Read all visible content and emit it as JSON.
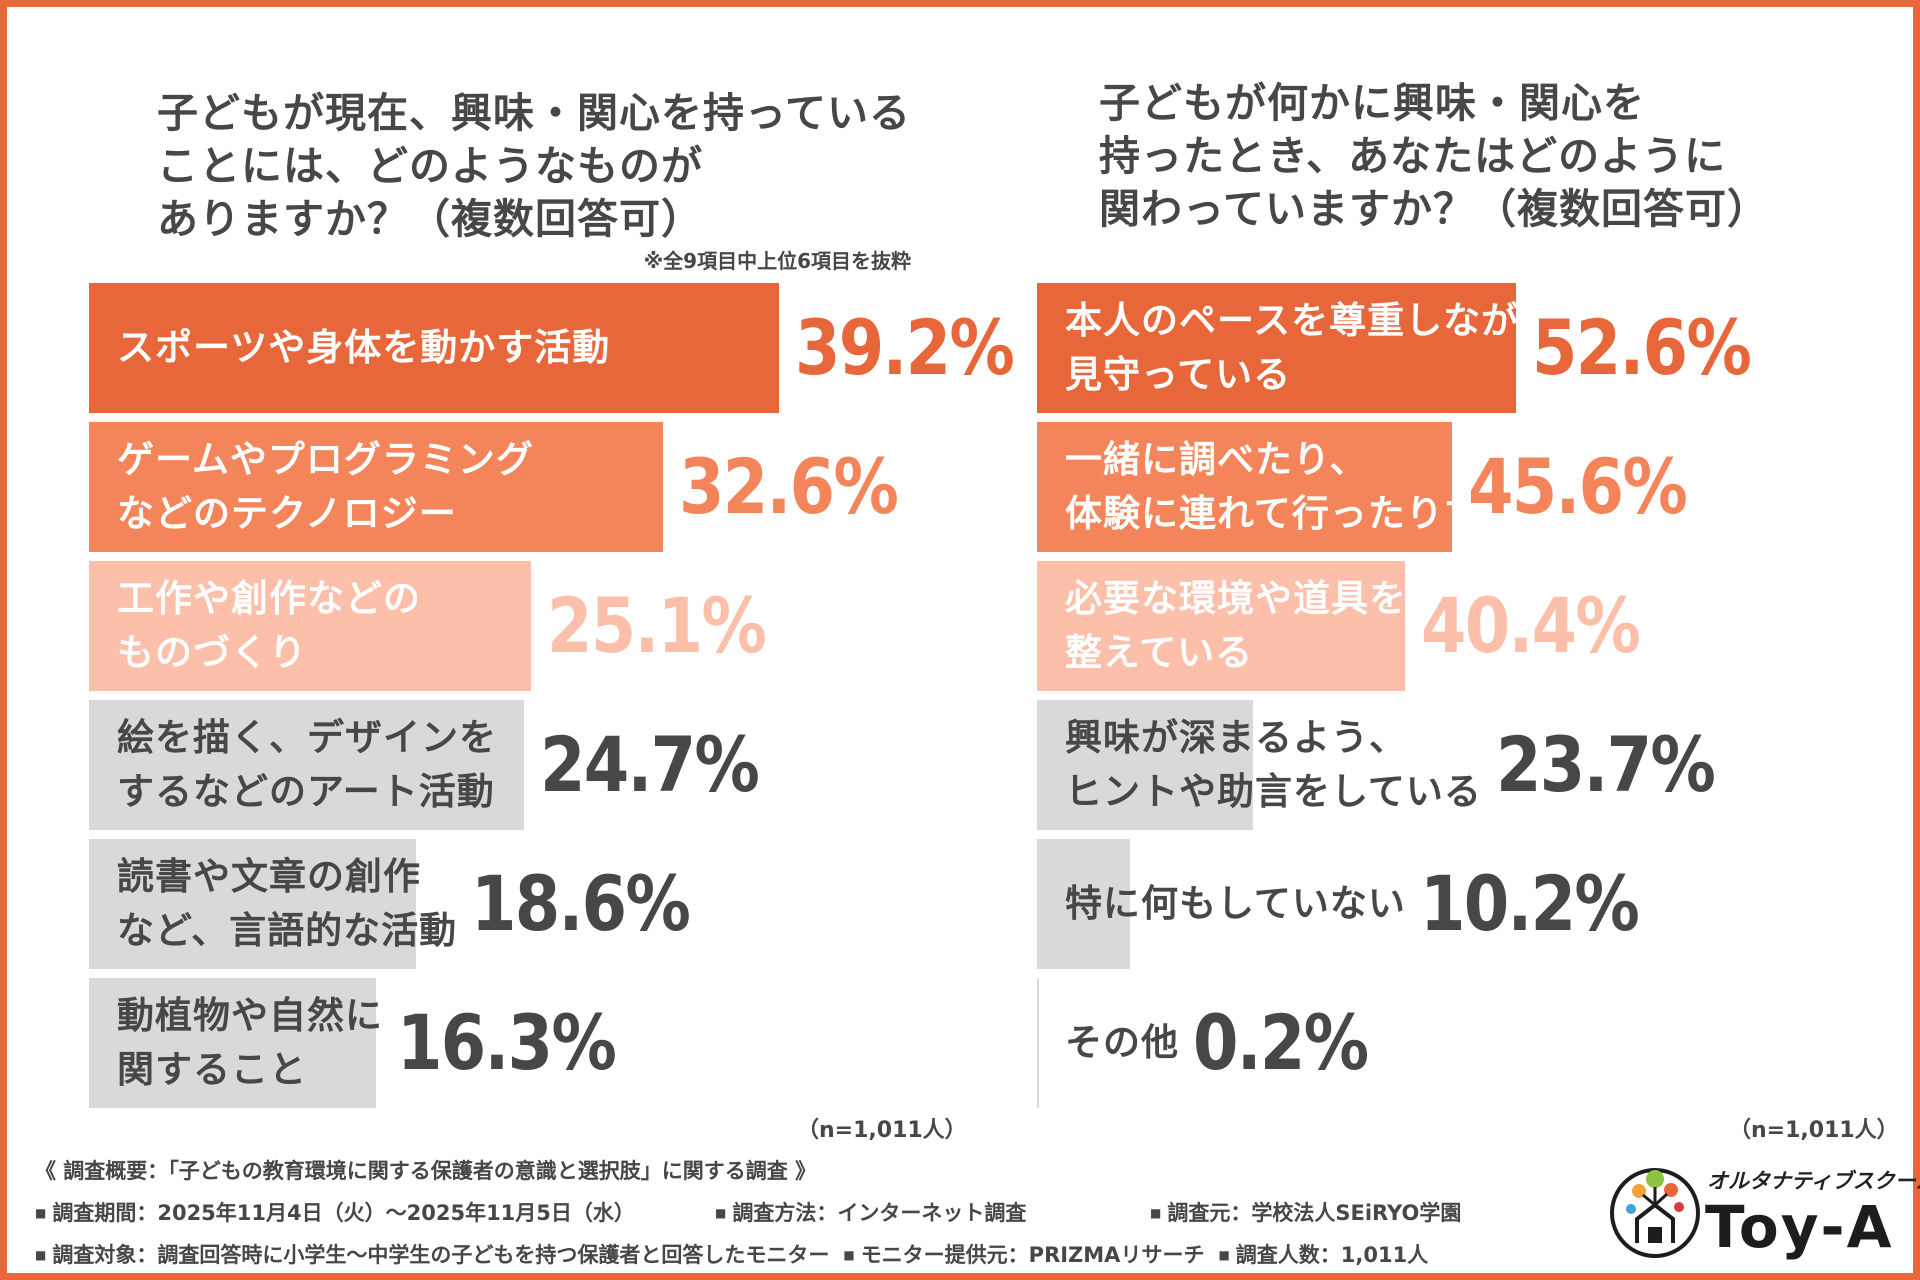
{
  "colors": {
    "frame": "#e8673a",
    "tier1": "#e8673a",
    "tier2": "#f4855b",
    "tier3": "#fbbfaa",
    "tier4": "#d9d9d9",
    "text_dark": "#474747",
    "text_white": "#ffffff"
  },
  "left_title": [
    "子どもが現在、興味・関心を持っている",
    "ことには、どのようなものが",
    "ありますか？（複数回答可）"
  ],
  "left_note": "※全9項目中上位6項目を抜粋",
  "right_title": [
    "子どもが何かに興味・関心を",
    "持ったとき、あなたはどのように",
    "関わっていますか？（複数回答可）"
  ],
  "left_n": "（n=1,011人）",
  "right_n": "（n=1,011人）",
  "chart_data": [
    {
      "type": "bar",
      "orientation": "horizontal",
      "title": "子どもが現在、興味・関心を持っていることには、どのようなものがありますか？（複数回答可）",
      "categories": [
        [
          "スポーツや身体を動かす活動"
        ],
        [
          "ゲームやプログラミング",
          "などのテクノロジー"
        ],
        [
          "工作や創作などの",
          "ものづくり"
        ],
        [
          "絵を描く、デザインを",
          "するなどのアート活動"
        ],
        [
          "読書や文章の創作",
          "など、言語的な活動"
        ],
        [
          "動植物や自然に",
          "関すること"
        ]
      ],
      "values": [
        39.2,
        32.6,
        25.1,
        24.7,
        18.6,
        16.3
      ],
      "value_labels": [
        "39.2%",
        "32.6%",
        "25.1%",
        "24.7%",
        "18.6%",
        "16.3%"
      ],
      "tiers": [
        1,
        2,
        3,
        4,
        4,
        4
      ],
      "unit": "%"
    },
    {
      "type": "bar",
      "orientation": "horizontal",
      "title": "子どもが何かに興味・関心を持ったとき、あなたはどのように関わっていますか？（複数回答可）",
      "categories": [
        [
          "本人のペースを尊重しながら",
          "見守っている"
        ],
        [
          "一緒に調べたり、",
          "体験に連れて行ったりする"
        ],
        [
          "必要な環境や道具を",
          "整えている"
        ],
        [
          "興味が深まるよう、",
          "ヒントや助言をしている"
        ],
        [
          "特に何もしていない"
        ],
        [
          "その他"
        ]
      ],
      "values": [
        52.6,
        45.6,
        40.4,
        23.7,
        10.2,
        0.2
      ],
      "value_labels": [
        "52.6%",
        "45.6%",
        "40.4%",
        "23.7%",
        "10.2%",
        "0.2%"
      ],
      "tiers": [
        1,
        2,
        3,
        4,
        4,
        4
      ],
      "unit": "%"
    }
  ],
  "footer": {
    "heading": "《 調査概要：「子どもの教育環境に関する保護者の意識と選択肢」に関する調査 》",
    "period": "調査期間：2025年11月4日（火）～2025年11月5日（水）",
    "method": "調査方法：インターネット調査",
    "source": "調査元：学校法人SEiRYO学園",
    "target": "調査対象：調査回答時に小学生～中学生の子どもを持つ保護者と回答したモニター",
    "provider": "モニター提供元：PRIZMAリサーチ",
    "count": "調査人数：1,011人"
  },
  "logo": {
    "sub": "オルタナティブスクール",
    "main": "Toy-A"
  }
}
